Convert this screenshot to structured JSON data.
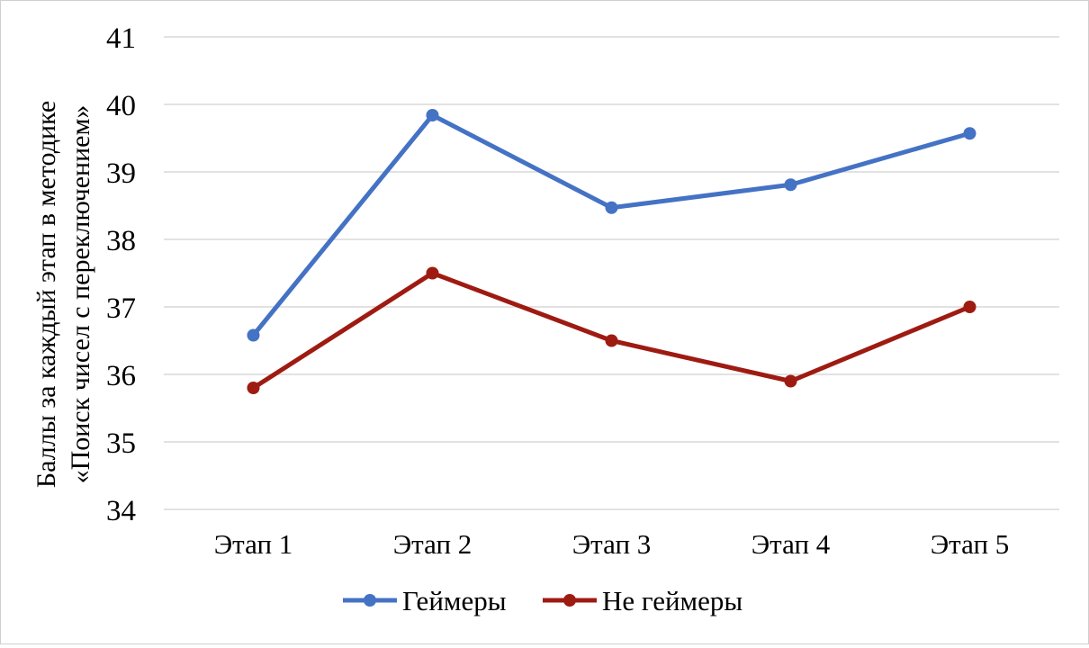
{
  "chart_data": {
    "type": "line",
    "title": "",
    "xlabel": "",
    "ylabel_lines": [
      "Баллы за каждый этап в методике",
      "«Поиск чисел с переключением»"
    ],
    "categories": [
      "Этап 1",
      "Этап 2",
      "Этап 3",
      "Этап 4",
      "Этап 5"
    ],
    "ylim": [
      34,
      41
    ],
    "yticks": [
      "34",
      "35",
      "36",
      "37",
      "38",
      "39",
      "40",
      "41"
    ],
    "grid": true,
    "legend_position": "bottom",
    "series": [
      {
        "name": "Геймеры",
        "color": "#4472C4",
        "values": [
          36.58,
          39.84,
          38.47,
          38.81,
          39.57
        ]
      },
      {
        "name": "Не геймеры",
        "color": "#9E1B12",
        "values": [
          35.8,
          37.5,
          36.5,
          35.9,
          37.0
        ]
      }
    ]
  }
}
